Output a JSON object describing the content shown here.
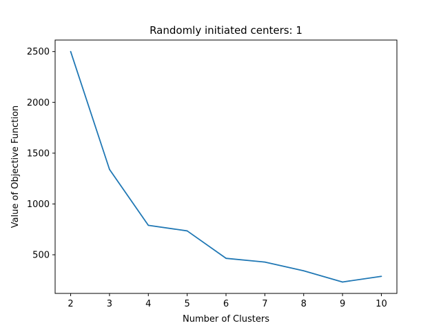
{
  "chart_data": {
    "type": "line",
    "title": "Randomly initiated centers: 1",
    "xlabel": "Number of Clusters",
    "ylabel": "Value of Objective Function",
    "x": [
      2,
      3,
      4,
      5,
      6,
      7,
      8,
      9,
      10
    ],
    "series": [
      {
        "values": [
          2500,
          1340,
          790,
          735,
          465,
          428,
          342,
          232,
          288
        ],
        "color": "#1f77b4"
      }
    ],
    "xticks": [
      "2",
      "3",
      "4",
      "5",
      "6",
      "7",
      "8",
      "9",
      "10"
    ],
    "yticks": [
      "500",
      "1000",
      "1500",
      "2000",
      "2500"
    ],
    "xlim": [
      1.6,
      10.4
    ],
    "ylim": [
      119.6,
      2613.4
    ],
    "grid": false
  }
}
